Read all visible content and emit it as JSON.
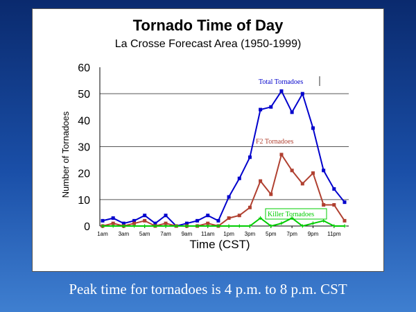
{
  "caption": "Peak time for tornadoes is 4 p.m. to 8 p.m. CST",
  "chart_data": {
    "type": "line",
    "title": "Tornado Time of Day",
    "subtitle": "La Crosse Forecast Area (1950-1999)",
    "xlabel": "Time (CST)",
    "ylabel": "Number of Tornadoes",
    "ylim": [
      0,
      60
    ],
    "yticks": [
      0,
      10,
      20,
      30,
      40,
      50,
      60
    ],
    "grid": "horizontal",
    "x_tick_labels": [
      "1am",
      "3am",
      "5am",
      "7am",
      "9am",
      "11am",
      "1pm",
      "3pm",
      "5pm",
      "7pm",
      "9pm",
      "11pm"
    ],
    "series": [
      {
        "name": "Total Tornadoes",
        "color": "#0000cc",
        "values": [
          2,
          3,
          1,
          2,
          4,
          1,
          4,
          0,
          1,
          2,
          4,
          2,
          11,
          18,
          26,
          44,
          45,
          51,
          43,
          50,
          37,
          21,
          14,
          9
        ]
      },
      {
        "name": "F2 Tornadoes",
        "color": "#b04030",
        "values": [
          0,
          1,
          0,
          1,
          2,
          0,
          1,
          0,
          0,
          0,
          1,
          0,
          3,
          4,
          7,
          17,
          12,
          27,
          21,
          16,
          20,
          8,
          8,
          2
        ]
      },
      {
        "name": "Killer Tornadoes",
        "color": "#00cc00",
        "values": [
          0,
          0,
          0,
          0,
          0,
          0,
          0,
          0,
          0,
          0,
          0,
          0,
          0,
          0,
          0,
          3,
          0,
          1,
          3,
          0,
          1,
          2,
          0,
          0
        ]
      }
    ]
  }
}
